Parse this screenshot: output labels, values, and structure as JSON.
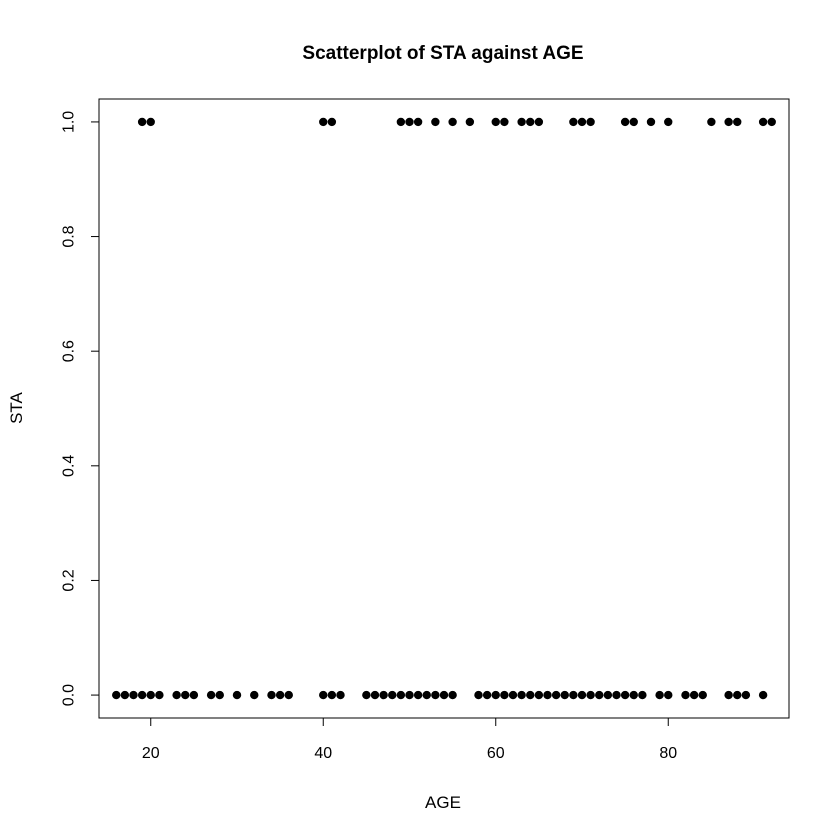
{
  "chart_data": {
    "type": "scatter",
    "title": "Scatterplot of STA against AGE",
    "xlabel": "AGE",
    "ylabel": "STA",
    "xlim": [
      14,
      94
    ],
    "ylim": [
      -0.04,
      1.04
    ],
    "xticks": [
      20,
      40,
      60,
      80
    ],
    "yticks": [
      0.0,
      0.2,
      0.4,
      0.6,
      0.8,
      1.0
    ],
    "xtick_labels": [
      "20",
      "40",
      "60",
      "80"
    ],
    "ytick_labels": [
      "0.0",
      "0.2",
      "0.4",
      "0.6",
      "0.8",
      "1.0"
    ],
    "grid": false,
    "marker_color": "#000000",
    "points": [
      {
        "x": 19,
        "y": 1
      },
      {
        "x": 20,
        "y": 1
      },
      {
        "x": 40,
        "y": 1
      },
      {
        "x": 41,
        "y": 1
      },
      {
        "x": 49,
        "y": 1
      },
      {
        "x": 50,
        "y": 1
      },
      {
        "x": 51,
        "y": 1
      },
      {
        "x": 53,
        "y": 1
      },
      {
        "x": 55,
        "y": 1
      },
      {
        "x": 57,
        "y": 1
      },
      {
        "x": 60,
        "y": 1
      },
      {
        "x": 61,
        "y": 1
      },
      {
        "x": 63,
        "y": 1
      },
      {
        "x": 64,
        "y": 1
      },
      {
        "x": 65,
        "y": 1
      },
      {
        "x": 69,
        "y": 1
      },
      {
        "x": 70,
        "y": 1
      },
      {
        "x": 71,
        "y": 1
      },
      {
        "x": 75,
        "y": 1
      },
      {
        "x": 76,
        "y": 1
      },
      {
        "x": 78,
        "y": 1
      },
      {
        "x": 80,
        "y": 1
      },
      {
        "x": 85,
        "y": 1
      },
      {
        "x": 87,
        "y": 1
      },
      {
        "x": 88,
        "y": 1
      },
      {
        "x": 91,
        "y": 1
      },
      {
        "x": 92,
        "y": 1
      },
      {
        "x": 16,
        "y": 0
      },
      {
        "x": 17,
        "y": 0
      },
      {
        "x": 18,
        "y": 0
      },
      {
        "x": 19,
        "y": 0
      },
      {
        "x": 20,
        "y": 0
      },
      {
        "x": 21,
        "y": 0
      },
      {
        "x": 23,
        "y": 0
      },
      {
        "x": 24,
        "y": 0
      },
      {
        "x": 25,
        "y": 0
      },
      {
        "x": 27,
        "y": 0
      },
      {
        "x": 28,
        "y": 0
      },
      {
        "x": 30,
        "y": 0
      },
      {
        "x": 32,
        "y": 0
      },
      {
        "x": 34,
        "y": 0
      },
      {
        "x": 35,
        "y": 0
      },
      {
        "x": 36,
        "y": 0
      },
      {
        "x": 40,
        "y": 0
      },
      {
        "x": 41,
        "y": 0
      },
      {
        "x": 42,
        "y": 0
      },
      {
        "x": 45,
        "y": 0
      },
      {
        "x": 46,
        "y": 0
      },
      {
        "x": 47,
        "y": 0
      },
      {
        "x": 48,
        "y": 0
      },
      {
        "x": 49,
        "y": 0
      },
      {
        "x": 50,
        "y": 0
      },
      {
        "x": 51,
        "y": 0
      },
      {
        "x": 52,
        "y": 0
      },
      {
        "x": 53,
        "y": 0
      },
      {
        "x": 54,
        "y": 0
      },
      {
        "x": 55,
        "y": 0
      },
      {
        "x": 58,
        "y": 0
      },
      {
        "x": 59,
        "y": 0
      },
      {
        "x": 60,
        "y": 0
      },
      {
        "x": 61,
        "y": 0
      },
      {
        "x": 62,
        "y": 0
      },
      {
        "x": 63,
        "y": 0
      },
      {
        "x": 64,
        "y": 0
      },
      {
        "x": 65,
        "y": 0
      },
      {
        "x": 66,
        "y": 0
      },
      {
        "x": 67,
        "y": 0
      },
      {
        "x": 68,
        "y": 0
      },
      {
        "x": 69,
        "y": 0
      },
      {
        "x": 70,
        "y": 0
      },
      {
        "x": 71,
        "y": 0
      },
      {
        "x": 72,
        "y": 0
      },
      {
        "x": 73,
        "y": 0
      },
      {
        "x": 74,
        "y": 0
      },
      {
        "x": 75,
        "y": 0
      },
      {
        "x": 76,
        "y": 0
      },
      {
        "x": 77,
        "y": 0
      },
      {
        "x": 79,
        "y": 0
      },
      {
        "x": 80,
        "y": 0
      },
      {
        "x": 82,
        "y": 0
      },
      {
        "x": 83,
        "y": 0
      },
      {
        "x": 84,
        "y": 0
      },
      {
        "x": 87,
        "y": 0
      },
      {
        "x": 88,
        "y": 0
      },
      {
        "x": 89,
        "y": 0
      },
      {
        "x": 91,
        "y": 0
      }
    ]
  }
}
